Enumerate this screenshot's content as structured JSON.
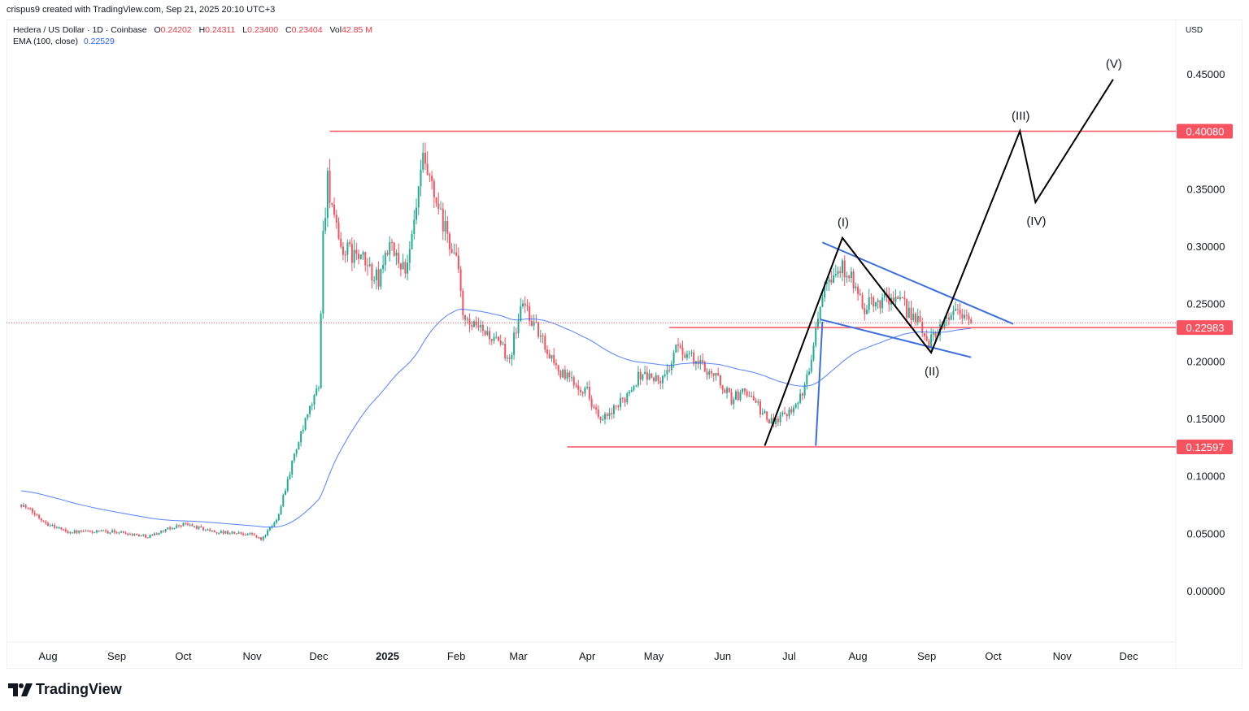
{
  "header": {
    "credit": "crispus9 created with TradingView.com, Sep 21, 2025 20:10 UTC+3",
    "symbol": "Hedera / US Dollar · 1D · Coinbase",
    "ohlc": {
      "o_label": "O",
      "o": "0.24202",
      "h_label": "H",
      "h": "0.24311",
      "l_label": "L",
      "l": "0.23400",
      "c_label": "C",
      "c": "0.23404",
      "vol_label": "Vol",
      "vol": "42.85 M"
    },
    "ema_label": "EMA (100, close)",
    "ema_value": "0.22529",
    "currency": "USD"
  },
  "footer": {
    "brand": "TradingView"
  },
  "colors": {
    "up": "#22ab94",
    "down": "#f7525f",
    "ema": "#2962ff",
    "level": "#f7525f",
    "wave": "#000000",
    "trendline": "#3b6fe0"
  },
  "chart_data": {
    "type": "candlestick",
    "ema_period": 100,
    "ylim": [
      -0.065,
      0.5
    ],
    "yticks": [
      "0.45000",
      "0.35000",
      "0.30000",
      "0.25000",
      "0.20000",
      "0.15000",
      "0.10000",
      "0.05000",
      "0.00000"
    ],
    "ytick_values": [
      0.45,
      0.35,
      0.3,
      0.25,
      0.2,
      0.15,
      0.1,
      0.05,
      0.0
    ],
    "xticks": [
      {
        "label": "Aug",
        "date": "2024-08-01"
      },
      {
        "label": "Sep",
        "date": "2024-09-01"
      },
      {
        "label": "Oct",
        "date": "2024-10-01"
      },
      {
        "label": "Nov",
        "date": "2024-11-01"
      },
      {
        "label": "Dec",
        "date": "2024-12-01"
      },
      {
        "label": "2025",
        "date": "2025-01-01",
        "bold": true
      },
      {
        "label": "Feb",
        "date": "2025-02-01"
      },
      {
        "label": "Mar",
        "date": "2025-03-01"
      },
      {
        "label": "Apr",
        "date": "2025-04-01"
      },
      {
        "label": "May",
        "date": "2025-05-01"
      },
      {
        "label": "Jun",
        "date": "2025-06-01"
      },
      {
        "label": "Jul",
        "date": "2025-07-01"
      },
      {
        "label": "Aug",
        "date": "2025-08-01"
      },
      {
        "label": "Sep",
        "date": "2025-09-01"
      },
      {
        "label": "Oct",
        "date": "2025-10-01"
      },
      {
        "label": "Nov",
        "date": "2025-11-01"
      },
      {
        "label": "Dec",
        "date": "2025-12-01"
      }
    ],
    "approx_close_path": [
      [
        "2024-07-20",
        0.076
      ],
      [
        "2024-08-01",
        0.059
      ],
      [
        "2024-08-10",
        0.052
      ],
      [
        "2024-09-01",
        0.052
      ],
      [
        "2024-09-15",
        0.048
      ],
      [
        "2024-10-01",
        0.059
      ],
      [
        "2024-10-15",
        0.052
      ],
      [
        "2024-11-01",
        0.05
      ],
      [
        "2024-11-05",
        0.045
      ],
      [
        "2024-11-12",
        0.062
      ],
      [
        "2024-11-20",
        0.119
      ],
      [
        "2024-11-25",
        0.147
      ],
      [
        "2024-12-01",
        0.18
      ],
      [
        "2024-12-03",
        0.31
      ],
      [
        "2024-12-05",
        0.36
      ],
      [
        "2024-12-10",
        0.3
      ],
      [
        "2024-12-20",
        0.29
      ],
      [
        "2024-12-28",
        0.27
      ],
      [
        "2025-01-01",
        0.3
      ],
      [
        "2025-01-10",
        0.28
      ],
      [
        "2025-01-17",
        0.373
      ],
      [
        "2025-01-25",
        0.324
      ],
      [
        "2025-02-01",
        0.289
      ],
      [
        "2025-02-05",
        0.232
      ],
      [
        "2025-02-15",
        0.225
      ],
      [
        "2025-02-25",
        0.204
      ],
      [
        "2025-03-03",
        0.253
      ],
      [
        "2025-03-10",
        0.225
      ],
      [
        "2025-03-20",
        0.19
      ],
      [
        "2025-04-01",
        0.175
      ],
      [
        "2025-04-07",
        0.147
      ],
      [
        "2025-04-15",
        0.161
      ],
      [
        "2025-04-25",
        0.19
      ],
      [
        "2025-05-05",
        0.183
      ],
      [
        "2025-05-12",
        0.214
      ],
      [
        "2025-05-20",
        0.2
      ],
      [
        "2025-05-28",
        0.19
      ],
      [
        "2025-06-05",
        0.168
      ],
      [
        "2025-06-12",
        0.175
      ],
      [
        "2025-06-22",
        0.147
      ],
      [
        "2025-07-01",
        0.158
      ],
      [
        "2025-07-08",
        0.175
      ],
      [
        "2025-07-12",
        0.218
      ],
      [
        "2025-07-17",
        0.275
      ],
      [
        "2025-07-27",
        0.282
      ],
      [
        "2025-08-03",
        0.246
      ],
      [
        "2025-08-15",
        0.257
      ],
      [
        "2025-08-25",
        0.243
      ],
      [
        "2025-09-02",
        0.218
      ],
      [
        "2025-09-10",
        0.239
      ],
      [
        "2025-09-15",
        0.246
      ],
      [
        "2025-09-21",
        0.234
      ]
    ],
    "last_price": 0.23404,
    "levels": [
      {
        "price": 0.4008,
        "label": "0.40080",
        "from": "2024-12-06"
      },
      {
        "price": 0.22983,
        "label": "0.22983",
        "from": "2025-05-08"
      },
      {
        "price": 0.12597,
        "label": "0.12597",
        "from": "2025-03-23"
      }
    ],
    "wave_path": [
      {
        "date": "2025-06-20",
        "price": 0.127,
        "label": ""
      },
      {
        "date": "2025-07-25",
        "price": 0.308,
        "label": "(I)",
        "pos": "above"
      },
      {
        "date": "2025-09-03",
        "price": 0.208,
        "label": "(II)",
        "pos": "below"
      },
      {
        "date": "2025-10-13",
        "price": 0.401,
        "label": "(III)",
        "pos": "above"
      },
      {
        "date": "2025-10-20",
        "price": 0.339,
        "label": "(IV)",
        "pos": "below"
      },
      {
        "date": "2025-11-24",
        "price": 0.446,
        "label": "(V)",
        "pos": "above"
      }
    ],
    "trendlines": [
      {
        "name": "wedge-upper",
        "from": [
          "2025-07-16",
          0.304
        ],
        "to": [
          "2025-10-10",
          0.233
        ]
      },
      {
        "name": "wedge-lower",
        "from": [
          "2025-07-15",
          0.237
        ],
        "to": [
          "2025-09-21",
          0.204
        ]
      },
      {
        "name": "flagpole",
        "from": [
          "2025-07-13",
          0.127
        ],
        "to": [
          "2025-07-16",
          0.235
        ]
      }
    ]
  }
}
